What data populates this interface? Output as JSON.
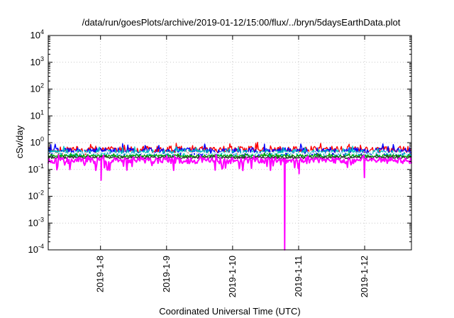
{
  "chart_data": {
    "type": "line",
    "title": "/data/run/goesPlots/archive/2019-01-12/15:00/flux/../bryn/5daysEarthData.plot",
    "xlabel": "Coordinated Universal Time (UTC)",
    "ylabel": "cSv/day",
    "yscale": "log",
    "ylim": [
      0.0001,
      10000
    ],
    "xlim": [
      "2019-01-07T05:00",
      "2019-01-12T17:00"
    ],
    "grid": true,
    "x_ticks": [
      "2019-1-8",
      "2019-1-9",
      "2019-1-10",
      "2019-1-11",
      "2019-1-12"
    ],
    "x_tick_dates": [
      "2019-01-08",
      "2019-01-09",
      "2019-01-10",
      "2019-01-11",
      "2019-01-12"
    ],
    "y_ticks": [
      {
        "base": "10",
        "exp": "-4",
        "value": 0.0001
      },
      {
        "base": "10",
        "exp": "-3",
        "value": 0.001
      },
      {
        "base": "10",
        "exp": "-2",
        "value": 0.01
      },
      {
        "base": "10",
        "exp": "-1",
        "value": 0.1
      },
      {
        "base": "10",
        "exp": "0",
        "value": 1
      },
      {
        "base": "10",
        "exp": "1",
        "value": 10
      },
      {
        "base": "10",
        "exp": "2",
        "value": 100
      },
      {
        "base": "10",
        "exp": "3",
        "value": 1000
      },
      {
        "base": "10",
        "exp": "4",
        "value": 10000
      }
    ],
    "series": [
      {
        "color": "#ff0000",
        "baseline": 0.55,
        "noise": 0.35
      },
      {
        "color": "#0000ff",
        "baseline": 0.48,
        "noise": 0.35
      },
      {
        "color": "#00c0c0",
        "baseline": 0.42,
        "noise": 0.3
      },
      {
        "color": "#ffffff",
        "baseline": 0.4,
        "noise": 0.15
      },
      {
        "color": "#00a000",
        "baseline": 0.32,
        "noise": 0.12
      },
      {
        "color": "#303030",
        "baseline": 0.28,
        "noise": 0.1
      },
      {
        "color": "#ff00ff",
        "baseline": 0.22,
        "noise": 0.25,
        "dips": [
          {
            "date": "2019-01-08T00:12",
            "value": 0.04
          },
          {
            "date": "2019-01-10T18:55",
            "value": 0.0001
          },
          {
            "date": "2019-01-11T00:10",
            "value": 0.07
          },
          {
            "date": "2019-01-11T23:55",
            "value": 0.05
          }
        ]
      }
    ]
  }
}
